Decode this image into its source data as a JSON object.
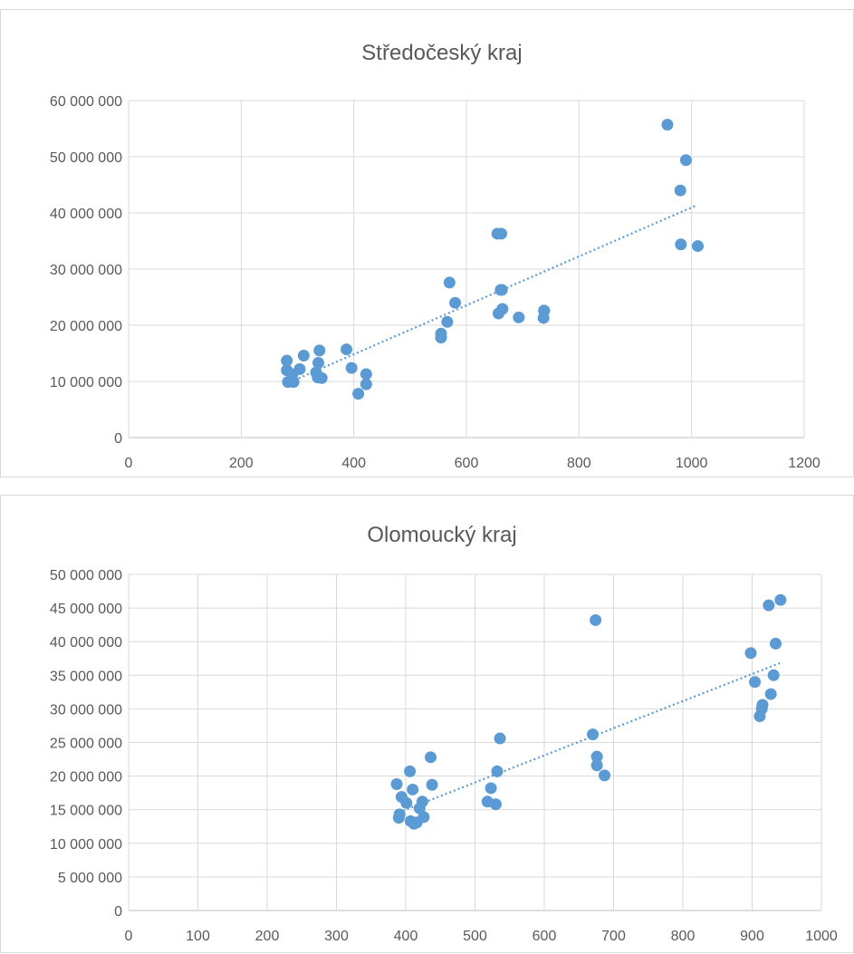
{
  "chart_data": [
    {
      "type": "scatter",
      "title": "Středočeský kraj",
      "xlim": [
        0,
        1200
      ],
      "ylim": [
        0,
        60000000
      ],
      "x_ticks": [
        "0",
        "200",
        "400",
        "600",
        "800",
        "1000",
        "1200"
      ],
      "y_ticks": [
        "0",
        "10 000 000",
        "20 000 000",
        "30 000 000",
        "40 000 000",
        "50 000 000",
        "60 000 000"
      ],
      "grid": true,
      "trendline": "linear",
      "trendline_segment": [
        [
          280,
          9600000
        ],
        [
          1010,
          41400000
        ]
      ],
      "color": "#5b9bd5",
      "points": [
        [
          281,
          13700000
        ],
        [
          281,
          12000000
        ],
        [
          283,
          9900000
        ],
        [
          291,
          11300000
        ],
        [
          293,
          9900000
        ],
        [
          304,
          12200000
        ],
        [
          311,
          14600000
        ],
        [
          333,
          11600000
        ],
        [
          336,
          10700000
        ],
        [
          337,
          13300000
        ],
        [
          339,
          15500000
        ],
        [
          343,
          10600000
        ],
        [
          387,
          15700000
        ],
        [
          396,
          12400000
        ],
        [
          408,
          7800000
        ],
        [
          422,
          9500000
        ],
        [
          422,
          11300000
        ],
        [
          555,
          18500000
        ],
        [
          555,
          17800000
        ],
        [
          566,
          20600000
        ],
        [
          570,
          27600000
        ],
        [
          580,
          24000000
        ],
        [
          655,
          36300000
        ],
        [
          661,
          26300000
        ],
        [
          662,
          36300000
        ],
        [
          663,
          26300000
        ],
        [
          657,
          22100000
        ],
        [
          664,
          22900000
        ],
        [
          693,
          21400000
        ],
        [
          737,
          21300000
        ],
        [
          738,
          22600000
        ],
        [
          738,
          22600000
        ],
        [
          957,
          55700000
        ],
        [
          980,
          44000000
        ],
        [
          981,
          34400000
        ],
        [
          990,
          49400000
        ],
        [
          1011,
          34100000
        ]
      ]
    },
    {
      "type": "scatter",
      "title": "Olomoucký kraj",
      "xlim": [
        0,
        1000
      ],
      "ylim": [
        0,
        50000000
      ],
      "x_ticks": [
        "0",
        "100",
        "200",
        "300",
        "400",
        "500",
        "600",
        "700",
        "800",
        "900",
        "1000"
      ],
      "y_ticks": [
        "0",
        "5 000 000",
        "10 000 000",
        "15 000 000",
        "20 000 000",
        "25 000 000",
        "30 000 000",
        "35 000 000",
        "40 000 000",
        "45 000 000",
        "50 000 000"
      ],
      "grid": true,
      "trendline": "linear",
      "trendline_segment": [
        [
          390,
          14600000
        ],
        [
          940,
          36800000
        ]
      ],
      "color": "#5b9bd5",
      "points": [
        [
          387,
          18800000
        ],
        [
          390,
          13800000
        ],
        [
          391,
          14300000
        ],
        [
          394,
          16900000
        ],
        [
          401,
          16000000
        ],
        [
          406,
          20700000
        ],
        [
          407,
          13300000
        ],
        [
          410,
          18000000
        ],
        [
          412,
          12900000
        ],
        [
          416,
          13100000
        ],
        [
          420,
          15200000
        ],
        [
          424,
          16200000
        ],
        [
          426,
          13900000
        ],
        [
          436,
          22800000
        ],
        [
          438,
          18700000
        ],
        [
          518,
          16200000
        ],
        [
          523,
          18200000
        ],
        [
          530,
          15800000
        ],
        [
          532,
          20700000
        ],
        [
          536,
          25600000
        ],
        [
          670,
          26200000
        ],
        [
          674,
          43200000
        ],
        [
          676,
          22900000
        ],
        [
          676,
          21600000
        ],
        [
          687,
          20100000
        ],
        [
          898,
          38300000
        ],
        [
          904,
          34000000
        ],
        [
          911,
          28900000
        ],
        [
          914,
          30000000
        ],
        [
          915,
          30600000
        ],
        [
          924,
          45400000
        ],
        [
          927,
          32200000
        ],
        [
          931,
          35000000
        ],
        [
          934,
          39700000
        ],
        [
          941,
          46200000
        ]
      ]
    }
  ]
}
